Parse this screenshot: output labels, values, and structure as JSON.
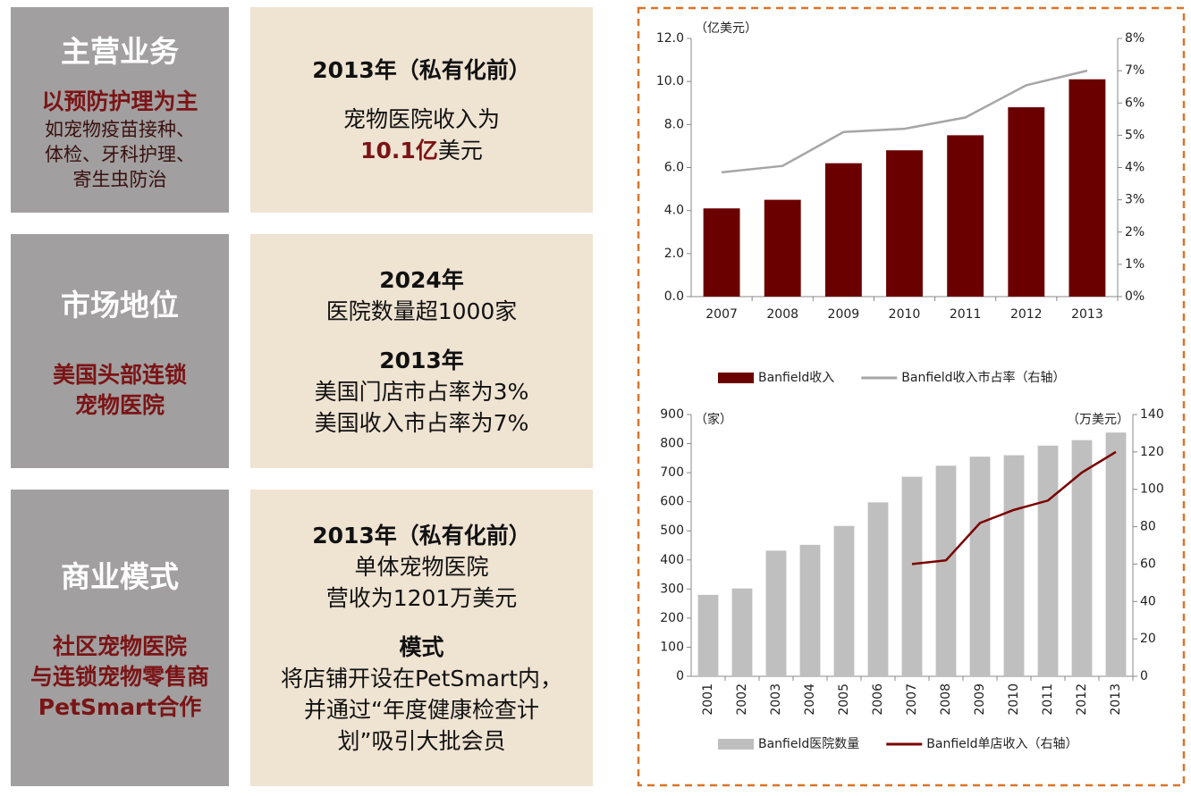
{
  "panels": [
    {
      "title": "主营业务",
      "left": [
        "以预防护理为主",
        "如宠物疫苗接种、",
        "体检、牙科护理、",
        "寄生虫防治"
      ],
      "right": [
        "2013年（私有化前）",
        "宠物医院收入为",
        "10.1亿",
        "美元"
      ]
    },
    {
      "title": "市场地位",
      "left": [
        "美国头部连锁",
        "宠物医院"
      ],
      "right": [
        "2024年",
        "医院数量超1000家",
        "2013年",
        "美国门店市占率为3%",
        "美国收入市占率为7%"
      ]
    },
    {
      "title": "商业模式",
      "left": [
        "社区宠物医院",
        "与连锁宠物零售商",
        "PetSmart合作"
      ],
      "right": [
        "2013年（私有化前）",
        "单体宠物医院",
        "营收为1201万美元",
        "模式",
        "将店铺开设在PetSmart内，",
        "并通过“年度健康检查计",
        "划”吸引大批会员"
      ]
    }
  ],
  "chart_data": [
    {
      "type": "bar",
      "y_label": "（亿美元）",
      "categories": [
        "2007",
        "2008",
        "2009",
        "2010",
        "2011",
        "2012",
        "2013"
      ],
      "series": [
        {
          "name": "Banfield收入",
          "color": "#6b0000",
          "values": [
            4.1,
            4.5,
            6.2,
            6.8,
            7.5,
            8.8,
            10.1
          ]
        },
        {
          "name": "Banfield收入市占率（右轴）",
          "color": "#a6a6a6",
          "axis": "y2",
          "kind": "line",
          "values": [
            3.85,
            4.05,
            5.1,
            5.2,
            5.55,
            6.55,
            7.0
          ]
        }
      ],
      "ylim": [
        0,
        12
      ],
      "yticks": [
        {
          "value": 0,
          "label": "0.0"
        },
        {
          "value": 2,
          "label": "2.0"
        },
        {
          "value": 4,
          "label": "4.0"
        },
        {
          "value": 6,
          "label": "6.0"
        },
        {
          "value": 8,
          "label": "8.0"
        },
        {
          "value": 10,
          "label": "10.0"
        },
        {
          "value": 12,
          "label": "12.0"
        }
      ],
      "y2lim": [
        0,
        8
      ],
      "y2ticks": [
        {
          "value": 0,
          "label": "0%"
        },
        {
          "value": 1,
          "label": "1%"
        },
        {
          "value": 2,
          "label": "2%"
        },
        {
          "value": 3,
          "label": "3%"
        },
        {
          "value": 4,
          "label": "4%"
        },
        {
          "value": 5,
          "label": "5%"
        },
        {
          "value": 6,
          "label": "6%"
        },
        {
          "value": 7,
          "label": "7%"
        },
        {
          "value": 8,
          "label": "8%"
        }
      ],
      "grid": false,
      "legend": "bottom"
    },
    {
      "type": "bar",
      "y_label": "（家）",
      "y2_label": "（万美元）",
      "categories": [
        "2001",
        "2002",
        "2003",
        "2004",
        "2005",
        "2006",
        "2007",
        "2008",
        "2009",
        "2010",
        "2011",
        "2012",
        "2013"
      ],
      "series": [
        {
          "name": "Banfield医院数量",
          "color": "#bfbfbf",
          "values": [
            280,
            302,
            432,
            452,
            517,
            598,
            686,
            724,
            755,
            760,
            793,
            812,
            838
          ]
        },
        {
          "name": "Banfield单店收入（右轴）",
          "color": "#7b0000",
          "axis": "y2",
          "kind": "line",
          "values": [
            null,
            null,
            null,
            null,
            null,
            null,
            60,
            62,
            82,
            89,
            94,
            109,
            120
          ]
        }
      ],
      "ylim": [
        0,
        900
      ],
      "yticks": [
        0,
        100,
        200,
        300,
        400,
        500,
        600,
        700,
        800,
        900
      ],
      "y2lim": [
        0,
        140
      ],
      "y2ticks": [
        0,
        20,
        40,
        60,
        80,
        100,
        120,
        140
      ],
      "grid": false,
      "legend": "bottom",
      "rotate_x_labels": true
    }
  ]
}
